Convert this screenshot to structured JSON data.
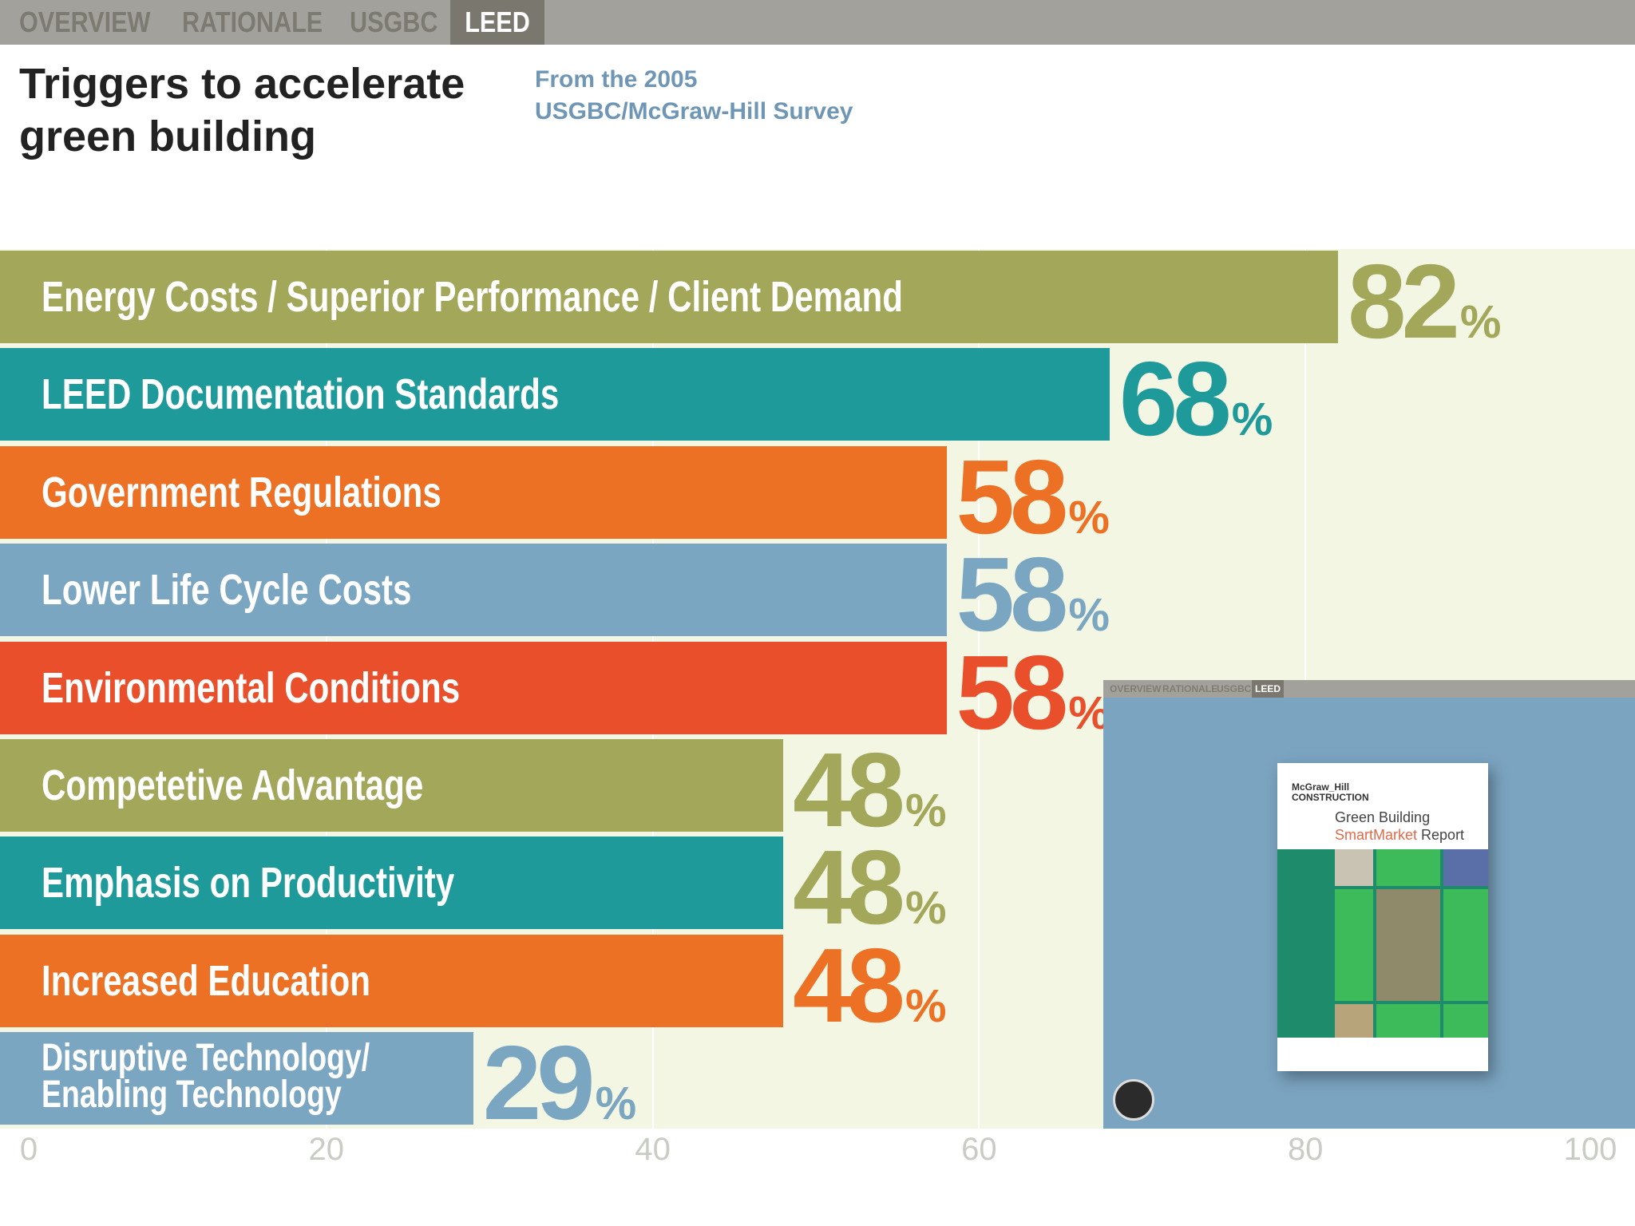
{
  "nav": {
    "tabs": [
      {
        "label": "OVERVIEW",
        "active": false
      },
      {
        "label": "RATIONALE",
        "active": false
      },
      {
        "label": "USGBC",
        "active": false
      },
      {
        "label": "LEED",
        "active": true
      }
    ]
  },
  "title": "Triggers to accelerate\ngreen building",
  "subtitle": "From the 2005\nUSGBC/McGraw-Hill Survey",
  "colors": {
    "olive": "#a2a75a",
    "teal": "#1e9a9a",
    "orange": "#ec7125",
    "blue": "#7aa6c2",
    "red": "#ea4f2b",
    "chart_background": "#f3f6e2"
  },
  "chart_data": {
    "type": "bar",
    "orientation": "horizontal",
    "categories": [
      "Energy Costs / Superior Performance / Client Demand",
      "LEED Documentation Standards",
      "Government Regulations",
      "Lower Life Cycle Costs",
      "Environmental Conditions",
      "Competetive Advantage",
      "Emphasis on Productivity",
      "Increased Education",
      "Disruptive Technology/\nEnabling Technology"
    ],
    "values": [
      82,
      68,
      58,
      58,
      58,
      48,
      48,
      48,
      29
    ],
    "value_suffix": "%",
    "bar_colors": [
      "#a2a75a",
      "#1e9a9a",
      "#ec7125",
      "#7aa6c2",
      "#ea4f2b",
      "#a2a75a",
      "#1e9a9a",
      "#ec7125",
      "#7aa6c2"
    ],
    "value_colors": [
      "#a2a75a",
      "#1e9a9a",
      "#ec7125",
      "#7aa6c2",
      "#ea4f2b",
      "#a2a75a",
      "#a2a75a",
      "#ec7125",
      "#7aa6c2"
    ],
    "xlim": [
      0,
      100
    ],
    "xticks": [
      0,
      20,
      40,
      60,
      80,
      100
    ],
    "grid": true
  },
  "inset": {
    "nav_tabs": [
      {
        "label": "OVERVIEW",
        "active": false
      },
      {
        "label": "RATIONALE",
        "active": false
      },
      {
        "label": "USGBC",
        "active": false
      },
      {
        "label": "LEED",
        "active": true
      }
    ],
    "report": {
      "brand": "McGraw_Hill\nCONSTRUCTION",
      "title_line1": "Green Building",
      "title_smart": "SmartMarket",
      "title_report": " Report"
    }
  }
}
